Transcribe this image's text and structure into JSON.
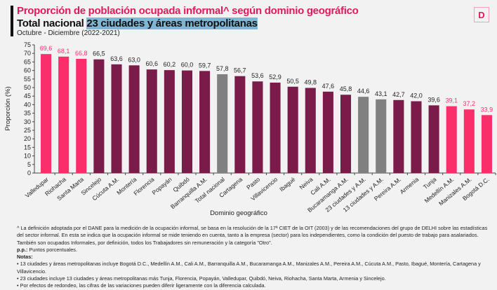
{
  "header": {
    "title": "Proporción de población ocupada informal^ según dominio geográfico",
    "subtitle_prefix": "Total nacional",
    "subtitle_highlight": "23 ciudades y áreas metropolitanas",
    "period": "Octubre - Diciembre (2022-2021)",
    "logo": "D"
  },
  "chart_data": {
    "type": "bar",
    "xlabel": "Dominio geográfico",
    "ylabel": "Proporción (%)",
    "ylim": [
      0,
      75
    ],
    "yticks": [
      0,
      5,
      10,
      15,
      20,
      25,
      30,
      35,
      40,
      45,
      50,
      55,
      60,
      65,
      70,
      75
    ],
    "grid": false,
    "categories": [
      "Valledupar",
      "Riohacha",
      "Santa Marta",
      "Sincelejo",
      "Cúcuta A.M.",
      "Montería",
      "Florencia",
      "Popayán",
      "Quibdó",
      "Barranquilla A.M.",
      "Total nacional",
      "Cartagena",
      "Pasto",
      "Villavicencio",
      "Ibagué",
      "Neiva",
      "Cali A.M.",
      "Bucaramanga A.M.",
      "23 ciudades y A.M.",
      "13 ciudades y A.M.",
      "Pereira A.M.",
      "Armenia",
      "Tunja",
      "Medellín A.M.",
      "Manizales A.M.",
      "Bogotá D.C."
    ],
    "values": [
      69.6,
      68.1,
      66.8,
      66.5,
      63.6,
      63.0,
      60.6,
      60.2,
      60.0,
      59.7,
      57.8,
      56.7,
      53.6,
      52.9,
      50.5,
      49.8,
      47.6,
      45.8,
      44.6,
      43.1,
      42.7,
      42.0,
      39.6,
      39.1,
      37.2,
      33.9
    ],
    "labels": [
      "69,6",
      "68,1",
      "66,8",
      "66,5",
      "63,6",
      "63,0",
      "60,6",
      "60,2",
      "60,0",
      "59,7",
      "57,8",
      "56,7",
      "53,6",
      "52,9",
      "50,5",
      "49,8",
      "47,6",
      "45,8",
      "44,6",
      "43,1",
      "42,7",
      "42,0",
      "39,6",
      "39,1",
      "37,2",
      "33,9"
    ],
    "bar_groups": [
      "high",
      "high",
      "high",
      "city",
      "city",
      "city",
      "city",
      "city",
      "city",
      "city",
      "aggregate",
      "city",
      "city",
      "city",
      "city",
      "city",
      "city",
      "city",
      "aggregate",
      "aggregate",
      "city",
      "city",
      "city",
      "low",
      "low",
      "low"
    ],
    "colors": {
      "high": "#fb2e6c",
      "low": "#fb2e6c",
      "city": "#7b1b49",
      "aggregate": "#808080"
    }
  },
  "notes": {
    "def1": "^ La definición adoptada por el DANE para la medición de la ocupación informal, se basa en la resolución de la 17ª CIET de la OIT (2003) y de las recomendaciones del grupo de DELHI sobre las estadísticas del sector informal. En esta se indica que la ocupación informal se mide teniendo en cuenta, tanto a la empresa (sector) para los independientes, como la condición del puesto de trabajo para asalariados.",
    "def2": "También son ocupados Informales, por definición, todos los Trabajadores sin remuneración y la categoría \"Otro\".",
    "pp_label": "p.p.:",
    "pp_text": " Puntos porcentuales.",
    "notas_label": "Notas:",
    "n1": "• 13 ciudades y áreas metropolitanas incluye Bogotá D.C., Medellín A.M., Cali A.M., Barranquilla A.M., Bucaramanga A.M., Manizales A.M., Pereira A.M., Cúcuta A.M., Pasto, Ibagué, Montería, Cartagena y Villavicencio.",
    "n2": "• 23 ciudades incluye 13 ciudades y áreas metropolitanas más Tunja, Florencia, Popayán, Valledupar, Quibdó, Neiva, Riohacha, Santa Marta, Armenia y Sincelejo.",
    "n3": "• Por efectos de redondeo, las cifras de las variaciones pueden diferir ligeramente con la diferencia calculada."
  }
}
